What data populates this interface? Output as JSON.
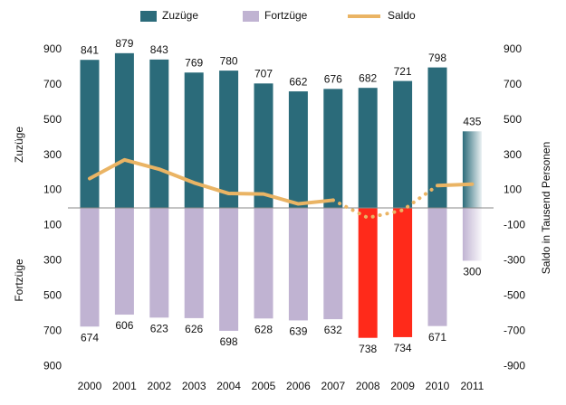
{
  "chart_data": {
    "type": "bar",
    "categories": [
      "2000",
      "2001",
      "2002",
      "2003",
      "2004",
      "2005",
      "2006",
      "2007",
      "2008",
      "2009",
      "2010",
      "2011"
    ],
    "series": [
      {
        "name": "Zuzüge",
        "color": "#2b6b7a",
        "values": [
          841,
          879,
          843,
          769,
          780,
          707,
          662,
          676,
          682,
          721,
          798,
          435
        ]
      },
      {
        "name": "Fortzüge",
        "color": "#c0b3d2",
        "colors": [
          "#c0b3d2",
          "#c0b3d2",
          "#c0b3d2",
          "#c0b3d2",
          "#c0b3d2",
          "#c0b3d2",
          "#c0b3d2",
          "#c0b3d2",
          "#ff2a1a",
          "#ff2a1a",
          "#c0b3d2",
          "#c0b3d2"
        ],
        "values": [
          -674,
          -606,
          -623,
          -626,
          -698,
          -628,
          -639,
          -632,
          -738,
          -734,
          -671,
          -300
        ],
        "value_labels": [
          "674",
          "606",
          "623",
          "626",
          "698",
          "628",
          "639",
          "632",
          "738",
          "734",
          "671",
          "300"
        ]
      },
      {
        "name": "Saldo",
        "color": "#eab464",
        "type": "line",
        "axis": "y2",
        "dotted_from": "2007",
        "dotted_to": "2010",
        "values": [
          167,
          273,
          220,
          143,
          82,
          79,
          23,
          44,
          -56,
          -13,
          127,
          135
        ]
      }
    ],
    "faded_category": "2011",
    "ylabel_top": "Zuzüge",
    "ylabel_bottom": "Fortzüge",
    "y2label": "Saldo in Tausend Personen",
    "ylim": [
      -950,
      950
    ],
    "yticks": [
      {
        "value": -900,
        "label": "900"
      },
      {
        "value": -700,
        "label": "700"
      },
      {
        "value": -500,
        "label": "500"
      },
      {
        "value": -300,
        "label": "300"
      },
      {
        "value": -100,
        "label": "100"
      },
      100,
      300,
      500,
      700,
      900
    ],
    "y2lim": [
      -950,
      950
    ],
    "y2ticks": [
      -900,
      -700,
      -500,
      -300,
      -100,
      100,
      300,
      500,
      700,
      900
    ]
  }
}
